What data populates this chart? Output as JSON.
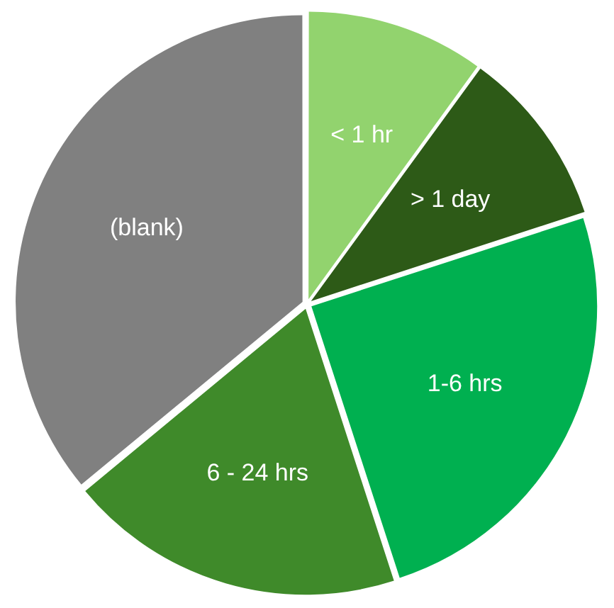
{
  "chart_data": {
    "type": "pie",
    "categories": [
      "< 1 hr",
      "> 1 day",
      "1-6 hrs",
      "6 - 24 hrs",
      "(blank)"
    ],
    "values": [
      10,
      10,
      25,
      19,
      36
    ],
    "colors": [
      "#92d36e",
      "#2d5a17",
      "#00b050",
      "#3f8a2a",
      "#808080"
    ],
    "legend": false
  }
}
